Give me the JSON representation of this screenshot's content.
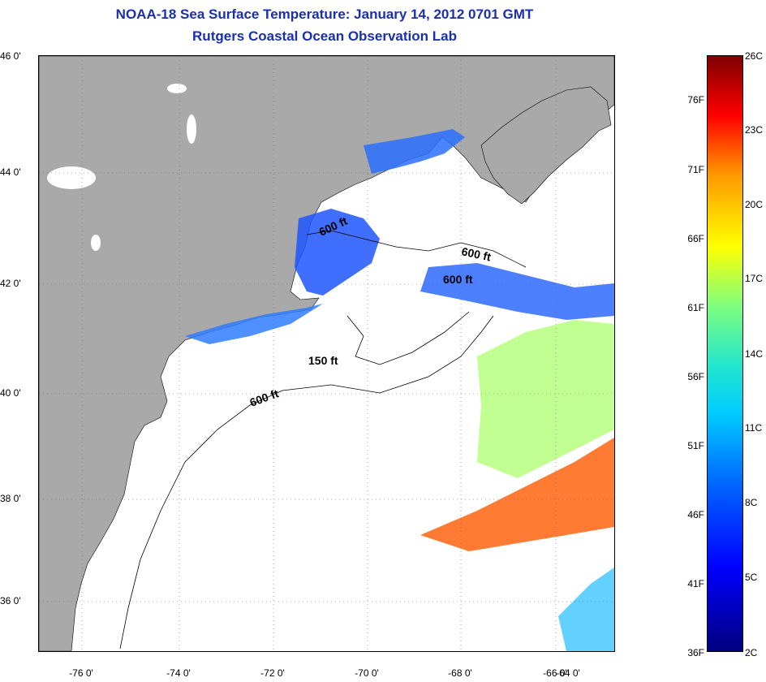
{
  "title": {
    "line1": "NOAA-18 Sea Surface Temperature:  January 14, 2012 0701 GMT",
    "line2": "Rutgers Coastal Ocean Observation Lab"
  },
  "map": {
    "lat_labels": [
      "46 0'",
      "44 0'",
      "42 0'",
      "40 0'",
      "38 0'",
      "36 0'"
    ],
    "lon_labels": [
      "-76 0'",
      "-74 0'",
      "-72 0'",
      "-70 0'",
      "-68 0'",
      "-66 0'",
      "-64 0'"
    ],
    "contours": {
      "label_600_gulf_maine": "600 ft",
      "label_600_east": "600 ft",
      "label_600_georges": "600 ft",
      "label_150": "150 ft",
      "label_600_shelf": "600 ft"
    },
    "colors": {
      "land": "#a9a9a9",
      "no_data": "#ffffff",
      "title": "#1a2fb0"
    }
  },
  "colorbar": {
    "f_labels": [
      "76F",
      "71F",
      "66F",
      "61F",
      "56F",
      "51F",
      "46F",
      "41F",
      "36F"
    ],
    "c_labels": [
      "26C",
      "23C",
      "20C",
      "17C",
      "14C",
      "11C",
      "8C",
      "5C",
      "2C"
    ]
  }
}
